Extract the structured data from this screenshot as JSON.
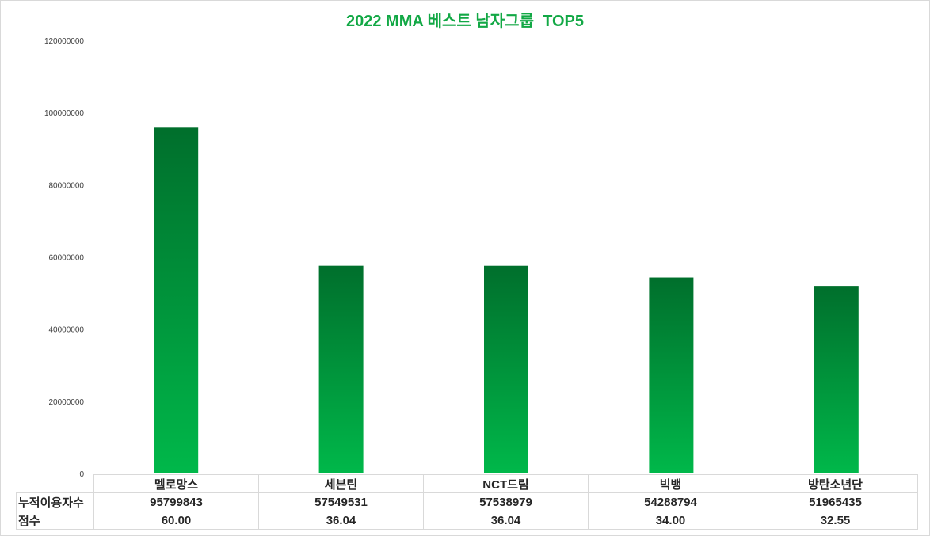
{
  "chart_data": {
    "type": "bar",
    "title": "2022 MMA 베스트 남자그룹  TOP5",
    "categories": [
      "멜로망스",
      "세븐틴",
      "NCT드림",
      "빅뱅",
      "방탄소년단"
    ],
    "series": [
      {
        "name": "누적이용자수",
        "values": [
          95799843,
          57549531,
          57538979,
          54288794,
          51965435
        ]
      }
    ],
    "table_rows": [
      {
        "label": "누적이용자수",
        "values": [
          "95799843",
          "57549531",
          "57538979",
          "54288794",
          "51965435"
        ]
      },
      {
        "label": "점수",
        "values": [
          "60.00",
          "36.04",
          "36.04",
          "34.00",
          "32.55"
        ]
      }
    ],
    "yticks": [
      "0",
      "20000000",
      "40000000",
      "60000000",
      "80000000",
      "100000000",
      "120000000"
    ],
    "ylim": [
      0,
      120000000
    ],
    "grid": false,
    "bar_color_top": "#006f2c",
    "bar_color_bottom": "#00b84a",
    "title_color": "#12a845"
  }
}
